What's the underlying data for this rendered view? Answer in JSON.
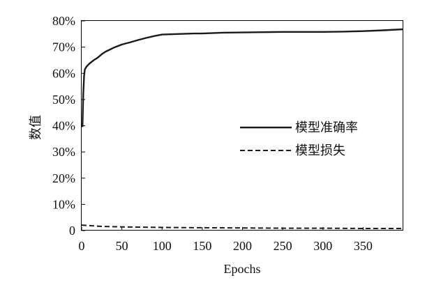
{
  "chart_data": {
    "type": "line",
    "xlabel": "Epochs",
    "ylabel": "数值",
    "xlim": [
      0,
      400
    ],
    "ylim": [
      0,
      80
    ],
    "x_ticks": [
      0,
      50,
      100,
      150,
      200,
      250,
      300,
      350
    ],
    "x_tick_labels": [
      "0",
      "50",
      "100",
      "150",
      "200",
      "250",
      "300",
      "350"
    ],
    "y_ticks": [
      0,
      10,
      20,
      30,
      40,
      50,
      60,
      70,
      80
    ],
    "y_tick_labels": [
      "0",
      "10%",
      "20%",
      "30%",
      "40%",
      "50%",
      "60%",
      "70%",
      "80%"
    ],
    "grid": false,
    "legend_position": "center-right",
    "series": [
      {
        "name": "模型准确率",
        "style": "solid",
        "color": "#1a1a1a",
        "x": [
          1,
          2,
          3,
          4,
          6,
          8,
          10,
          15,
          20,
          25,
          30,
          40,
          50,
          60,
          70,
          80,
          90,
          100,
          110,
          120,
          130,
          140,
          150,
          175,
          200,
          225,
          250,
          275,
          300,
          325,
          350,
          375,
          400
        ],
        "y": [
          39.5,
          52,
          59,
          61.5,
          62.5,
          63.2,
          63.8,
          65,
          66,
          67.3,
          68.3,
          69.8,
          71,
          71.8,
          72.7,
          73.5,
          74.2,
          74.8,
          74.9,
          75,
          75.1,
          75.2,
          75.2,
          75.5,
          75.6,
          75.7,
          75.8,
          75.8,
          75.8,
          75.9,
          76.1,
          76.4,
          76.8
        ]
      },
      {
        "name": "模型损失",
        "style": "dashed",
        "color": "#1a1a1a",
        "x": [
          0,
          10,
          25,
          50,
          100,
          150,
          200,
          250,
          300,
          350,
          400
        ],
        "y": [
          2.1,
          1.9,
          1.6,
          1.4,
          1.2,
          1.1,
          1.0,
          0.9,
          0.9,
          0.8,
          0.8
        ]
      }
    ]
  }
}
